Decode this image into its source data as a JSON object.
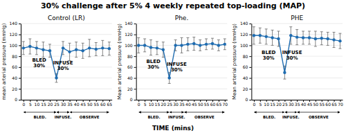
{
  "title": "30% challenge after 5% 4 weekly repeated top-loading (MAP)",
  "xlabel": "TIME (mins)",
  "chart_data": [
    {
      "type": "line",
      "title": "Control (LR)",
      "ylabel": "mean arterial pressure (mmHg)",
      "x": [
        0,
        5,
        10,
        15,
        20,
        25,
        30,
        35,
        40,
        45,
        50,
        55,
        60,
        65
      ],
      "values": [
        95,
        98,
        95,
        92,
        90,
        40,
        95,
        88,
        92,
        90,
        95,
        93,
        95,
        94
      ],
      "yerr": [
        12,
        14,
        12,
        14,
        12,
        8,
        12,
        16,
        14,
        14,
        16,
        12,
        14,
        12
      ],
      "color": "#1F6CB0",
      "marker": "circle",
      "xlim": [
        -2,
        67
      ],
      "xticks": [
        0,
        5,
        10,
        15,
        20,
        25,
        30,
        35,
        40,
        45,
        50,
        55,
        60,
        65
      ],
      "ylim": [
        0,
        140
      ],
      "yticks": [
        0,
        20,
        40,
        60,
        80,
        100,
        120,
        140
      ],
      "grid": true,
      "annotations": [
        {
          "text": "BLED\n30%",
          "x": 12,
          "y": 68
        },
        {
          "text": "INFUSE\n30%",
          "x": 30,
          "y": 63
        }
      ],
      "phases": [
        {
          "label": "BLED.",
          "start": 0,
          "end": 25
        },
        {
          "label": "INFUSE.",
          "start": 25,
          "end": 35
        },
        {
          "label": "OBSERVE",
          "start": 35,
          "end": 65
        }
      ]
    },
    {
      "type": "line",
      "title": "Phe.",
      "ylabel": "Mean arterial pressure (mmHg)",
      "x": [
        0,
        5,
        10,
        15,
        20,
        25,
        30,
        35,
        40,
        45,
        50,
        55,
        60,
        65,
        70
      ],
      "values": [
        100,
        100,
        96,
        95,
        92,
        40,
        100,
        100,
        102,
        103,
        100,
        102,
        103,
        100,
        102
      ],
      "yerr": [
        14,
        12,
        14,
        12,
        14,
        10,
        10,
        14,
        12,
        12,
        10,
        10,
        10,
        10,
        10
      ],
      "color": "#1F6CB0",
      "marker": "circle",
      "xlim": [
        -2,
        72
      ],
      "xticks": [
        0,
        5,
        10,
        15,
        20,
        25,
        30,
        35,
        40,
        45,
        50,
        55,
        60,
        65,
        70
      ],
      "ylim": [
        0,
        140
      ],
      "yticks": [
        0,
        20,
        40,
        60,
        80,
        100,
        120,
        140
      ],
      "grid": true,
      "annotations": [
        {
          "text": "BLED\n30%",
          "x": 12,
          "y": 65
        },
        {
          "text": "INFUSE\n30%",
          "x": 31,
          "y": 60
        }
      ],
      "phases": [
        {
          "label": "BLED.",
          "start": 0,
          "end": 25
        },
        {
          "label": "INFUSE.",
          "start": 25,
          "end": 37
        },
        {
          "label": "OBSERVE",
          "start": 37,
          "end": 70
        }
      ]
    },
    {
      "type": "line",
      "title": "PHE",
      "ylabel": "Mean arterial pressure (mmHg)",
      "x": [
        0,
        5,
        10,
        15,
        20,
        25,
        30,
        35,
        40,
        45,
        50,
        55,
        60,
        65,
        70
      ],
      "values": [
        118,
        118,
        116,
        114,
        112,
        50,
        118,
        115,
        114,
        114,
        112,
        113,
        112,
        110,
        108
      ],
      "yerr": [
        16,
        14,
        14,
        14,
        14,
        12,
        16,
        14,
        12,
        12,
        14,
        12,
        12,
        14,
        14
      ],
      "color": "#1F6CB0",
      "marker": "circle",
      "xlim": [
        -2,
        72
      ],
      "xticks": [
        0,
        5,
        10,
        15,
        20,
        25,
        30,
        35,
        40,
        45,
        50,
        55,
        60,
        65,
        70
      ],
      "ylim": [
        0,
        140
      ],
      "yticks": [
        0,
        20,
        40,
        60,
        80,
        100,
        120,
        140
      ],
      "grid": true,
      "annotations": [
        {
          "text": "BLED\n30%",
          "x": 12,
          "y": 82
        },
        {
          "text": "INFUSE\n30%",
          "x": 31,
          "y": 82
        }
      ],
      "phases": [
        {
          "label": "BLED.",
          "start": 0,
          "end": 25
        },
        {
          "label": "INFUSE.",
          "start": 25,
          "end": 35
        },
        {
          "label": "OBSERVE",
          "start": 35,
          "end": 70
        }
      ]
    }
  ]
}
